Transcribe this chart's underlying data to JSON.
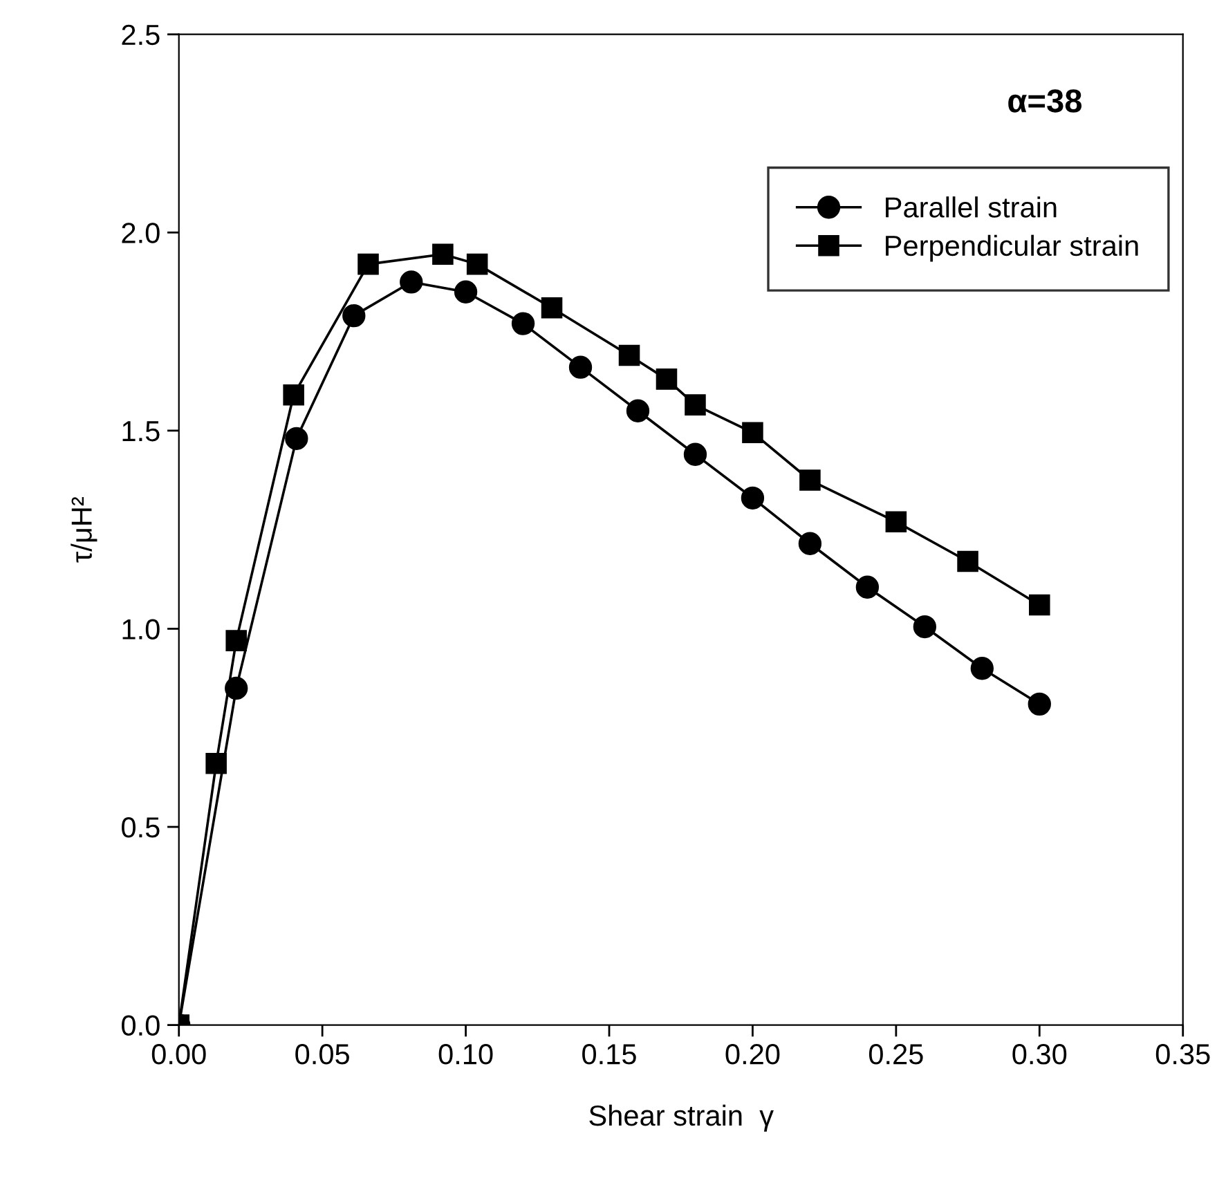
{
  "chart_data": {
    "type": "line",
    "xlabel": "Shear strain  γ",
    "ylabel": "τ/μH²",
    "annotations": [
      "α=38"
    ],
    "series": [
      {
        "name": "Parallel strain",
        "color": "#000000",
        "marker": "circle",
        "x": [
          0,
          0.02,
          0.041,
          0.061,
          0.081,
          0.1,
          0.12,
          0.14,
          0.16,
          0.18,
          0.2,
          0.22,
          0.24,
          0.26,
          0.28,
          0.3
        ],
        "values": [
          0,
          0.85,
          1.48,
          1.79,
          1.875,
          1.85,
          1.77,
          1.66,
          1.55,
          1.44,
          1.33,
          1.215,
          1.105,
          1.005,
          0.9,
          0.81
        ]
      },
      {
        "name": "Perpendicular strain",
        "color": "#000000",
        "marker": "square",
        "x": [
          0,
          0.013,
          0.02,
          0.04,
          0.066,
          0.092,
          0.104,
          0.13,
          0.157,
          0.17,
          0.18,
          0.2,
          0.22,
          0.25,
          0.275,
          0.3
        ],
        "values": [
          0,
          0.66,
          0.97,
          1.59,
          1.92,
          1.945,
          1.92,
          1.81,
          1.69,
          1.63,
          1.565,
          1.495,
          1.375,
          1.27,
          1.17,
          1.06
        ]
      }
    ],
    "xlim": [
      0,
      0.35
    ],
    "ylim": [
      0,
      2.5
    ],
    "xticks": [
      {
        "value": 0,
        "label": "0.00"
      },
      {
        "value": 0.05,
        "label": "0.05"
      },
      {
        "value": 0.1,
        "label": "0.10"
      },
      {
        "value": 0.15,
        "label": "0.15"
      },
      {
        "value": 0.2,
        "label": "0.20"
      },
      {
        "value": 0.25,
        "label": "0.25"
      },
      {
        "value": 0.3,
        "label": "0.30"
      },
      {
        "value": 0.35,
        "label": "0.35"
      }
    ],
    "yticks": [
      {
        "value": 0,
        "label": "0.0"
      },
      {
        "value": 0.5,
        "label": "0.5"
      },
      {
        "value": 1,
        "label": "1.0"
      },
      {
        "value": 1.5,
        "label": "1.5"
      },
      {
        "value": 2,
        "label": "2.0"
      },
      {
        "value": 2.5,
        "label": "2.5"
      }
    ],
    "grid": false,
    "legend": "top right",
    "line_style": "solid"
  }
}
